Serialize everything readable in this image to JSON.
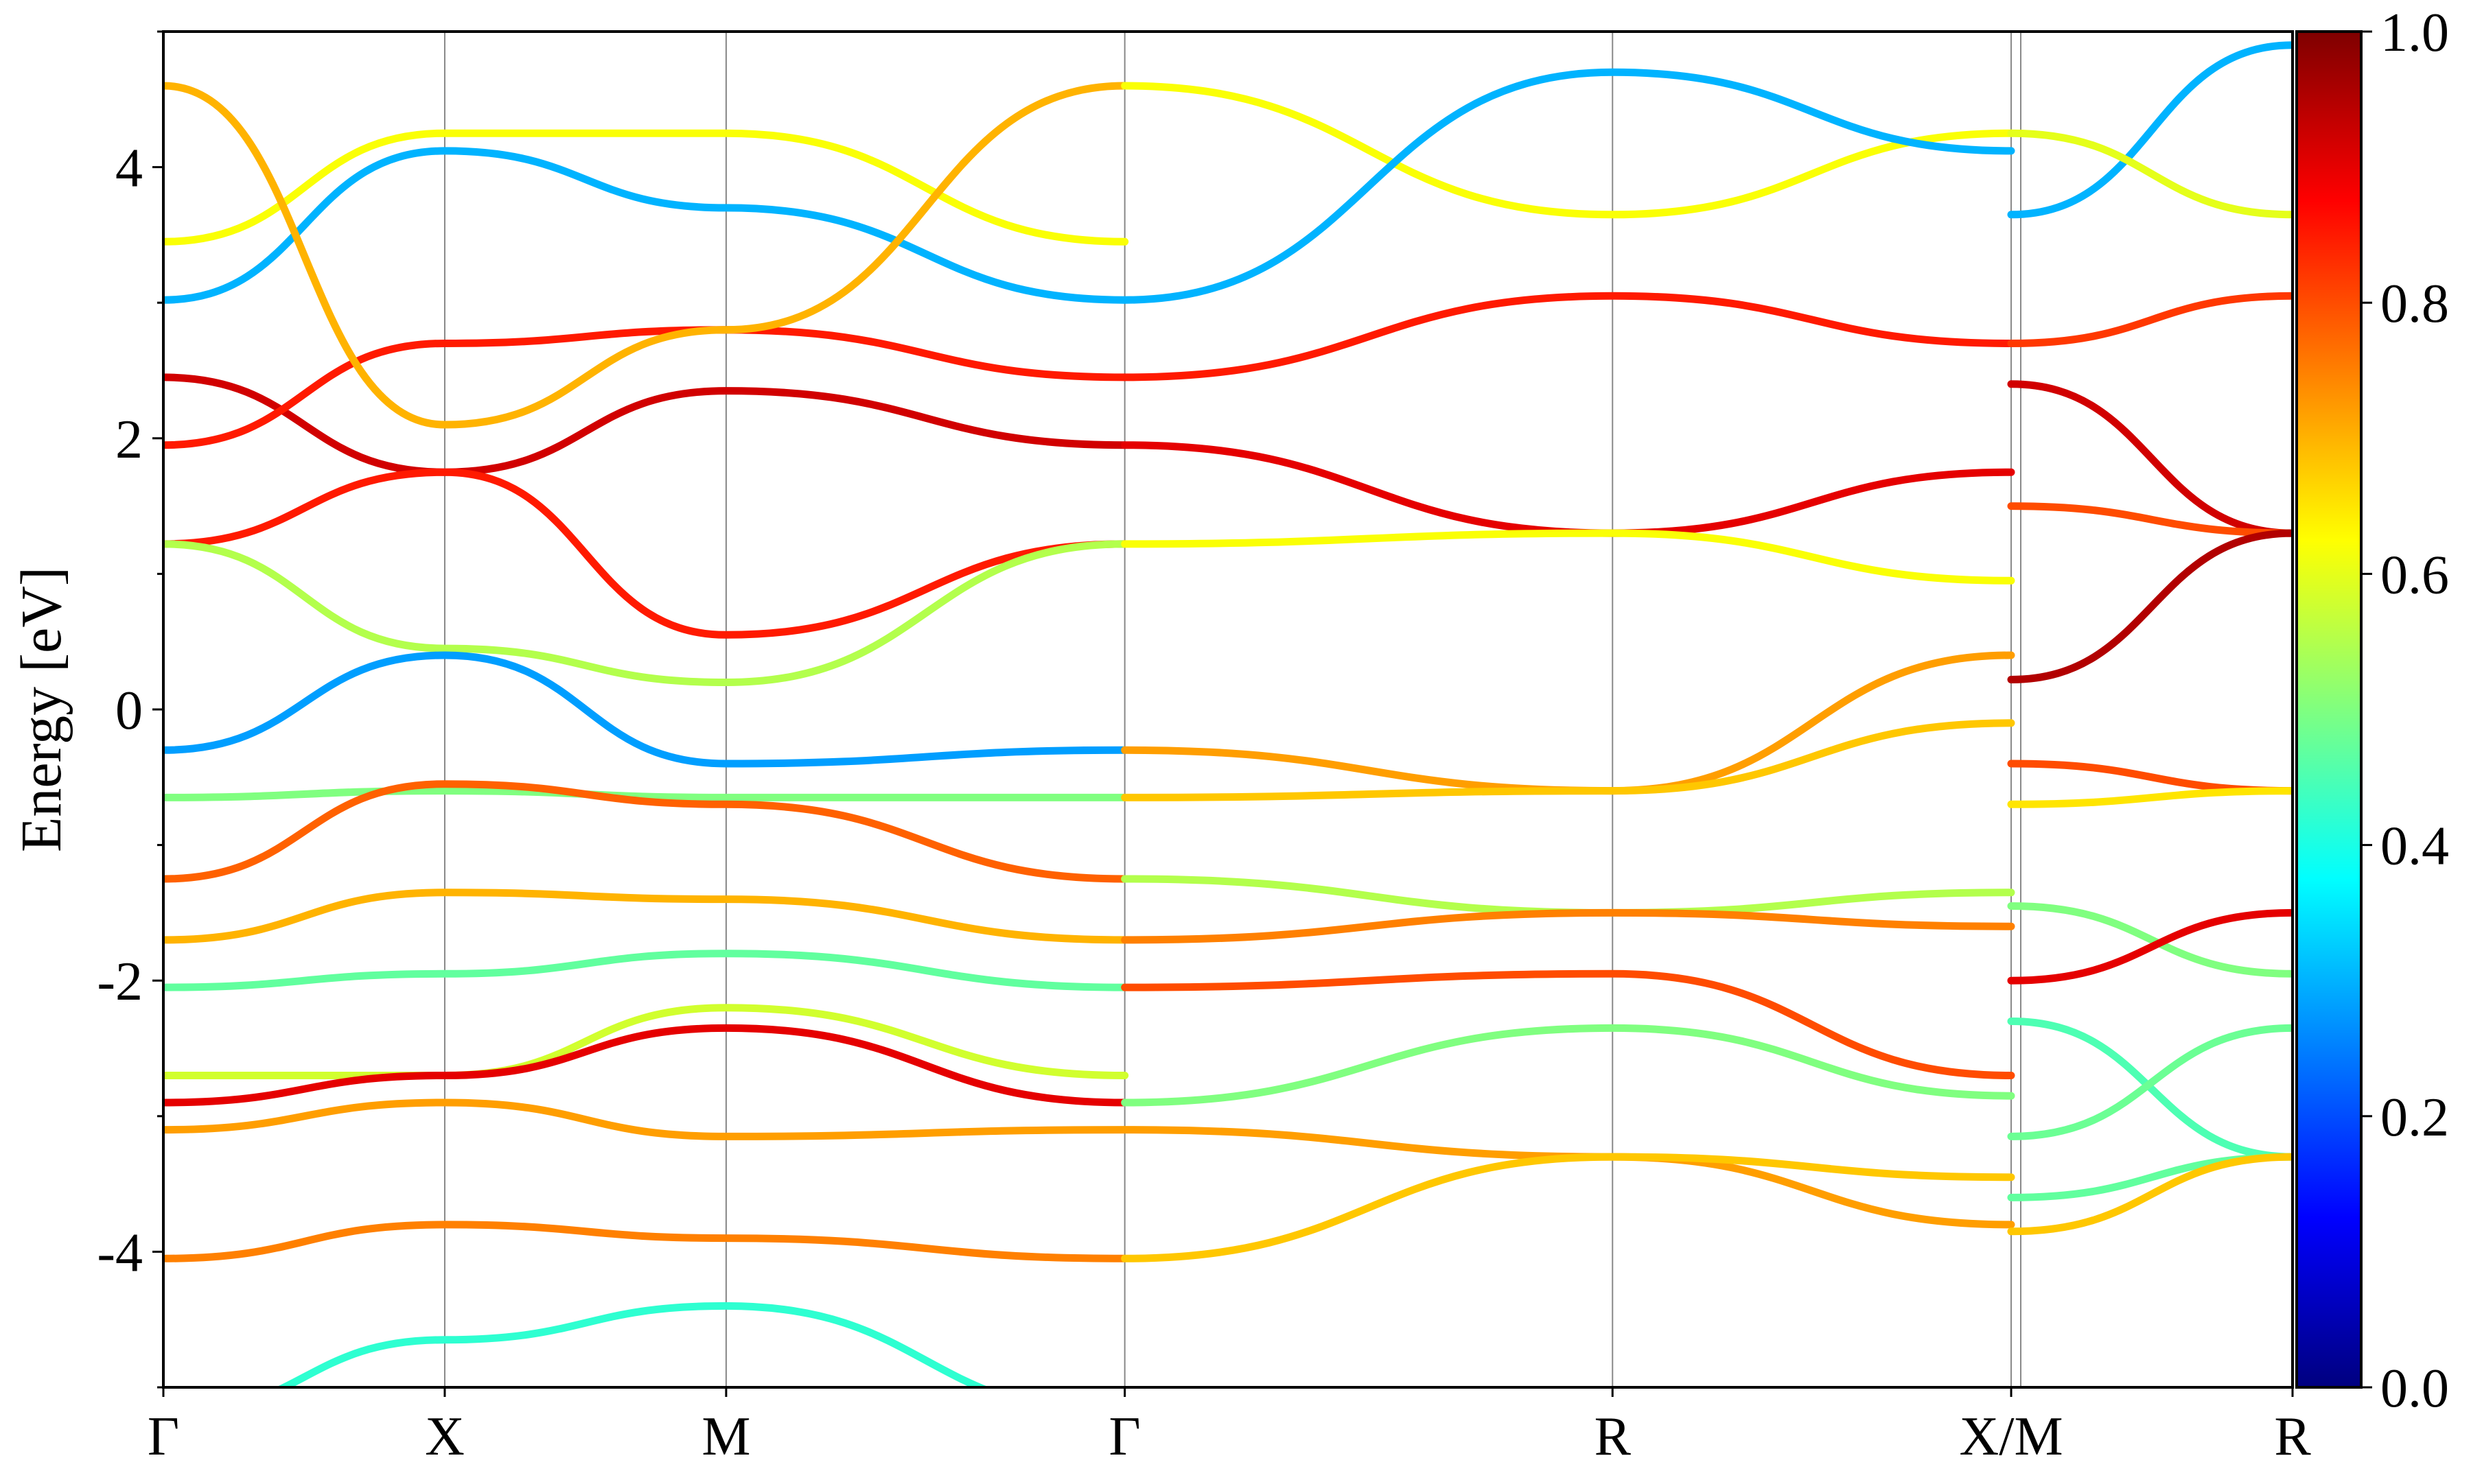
{
  "chart_data": {
    "type": "line",
    "title": "",
    "ylabel": "Energy [eV]",
    "xlabel": "",
    "ylim": [
      -5,
      5
    ],
    "grid": "vertical lines at high-symmetry points",
    "k_path": {
      "labels": [
        "Γ",
        "X",
        "M",
        "Γ",
        "R",
        "X/M",
        "R"
      ],
      "positions": [
        0,
        0.6,
        1.2,
        2.05,
        3.09,
        3.94,
        4.54
      ],
      "discontinuity": 3.94
    },
    "y_ticks": [
      -4,
      -2,
      0,
      2,
      4
    ],
    "y_tick_labels": [
      "-4",
      "-2",
      "0",
      "2",
      "4"
    ],
    "colorbar": {
      "range": [
        0.0,
        1.0
      ],
      "ticks": [
        0.0,
        0.2,
        0.4,
        0.6,
        0.8,
        1.0
      ],
      "tick_labels": [
        "0.0",
        "0.2",
        "0.4",
        "0.6",
        "0.8",
        "1.0"
      ],
      "colormap": "jet"
    },
    "series": [
      {
        "x": [
          0,
          0.6,
          1.2,
          2.05
        ],
        "y": [
          2.45,
          1.75,
          2.35,
          1.95
        ],
        "weight": 0.92
      },
      {
        "x": [
          0,
          0.6,
          1.2,
          2.05
        ],
        "y": [
          1.95,
          2.7,
          2.8,
          2.45
        ],
        "weight": 0.85
      },
      {
        "x": [
          0,
          0.6,
          1.2,
          2.05
        ],
        "y": [
          1.22,
          1.75,
          0.55,
          1.22
        ],
        "weight": 0.85
      },
      {
        "x": [
          0,
          0.6,
          1.2,
          2.05
        ],
        "y": [
          1.22,
          0.45,
          0.2,
          1.22
        ],
        "weight": 0.55
      },
      {
        "x": [
          0,
          0.6,
          1.2,
          2.05
        ],
        "y": [
          -0.3,
          0.4,
          -0.4,
          -0.3
        ],
        "weight": 0.28
      },
      {
        "x": [
          0,
          0.6,
          1.2,
          2.05
        ],
        "y": [
          -0.65,
          -0.6,
          -0.65,
          -0.65
        ],
        "weight": 0.5
      },
      {
        "x": [
          0,
          0.6,
          1.2,
          2.05
        ],
        "y": [
          -1.25,
          -0.55,
          -0.7,
          -1.25
        ],
        "weight": 0.78
      },
      {
        "x": [
          0,
          0.6,
          1.2,
          2.05
        ],
        "y": [
          -1.7,
          -1.35,
          -1.4,
          -1.7
        ],
        "weight": 0.7
      },
      {
        "x": [
          0,
          0.6,
          1.2,
          2.05
        ],
        "y": [
          -2.05,
          -1.95,
          -1.8,
          -2.05
        ],
        "weight": 0.47
      },
      {
        "x": [
          0,
          0.6,
          1.2,
          2.05
        ],
        "y": [
          -2.7,
          -2.7,
          -2.2,
          -2.7
        ],
        "weight": 0.58
      },
      {
        "x": [
          0,
          0.6,
          1.2,
          2.05
        ],
        "y": [
          -2.9,
          -2.7,
          -2.35,
          -2.9
        ],
        "weight": 0.9
      },
      {
        "x": [
          0,
          0.6,
          1.2,
          2.05
        ],
        "y": [
          -3.1,
          -2.9,
          -3.15,
          -3.1
        ],
        "weight": 0.72
      },
      {
        "x": [
          0,
          0.6,
          1.2,
          2.05
        ],
        "y": [
          -4.05,
          -3.8,
          -3.9,
          -4.05
        ],
        "weight": 0.75
      },
      {
        "x": [
          0,
          0.6,
          1.2,
          2.05
        ],
        "y": [
          -5.2,
          -4.65,
          -4.4,
          -5.2
        ],
        "weight": 0.42
      },
      {
        "x": [
          0,
          0.6,
          1.2,
          2.05
        ],
        "y": [
          3.02,
          4.12,
          3.7,
          3.02
        ],
        "weight": 0.3
      },
      {
        "x": [
          0,
          0.6,
          1.2,
          2.05
        ],
        "y": [
          3.45,
          4.25,
          4.25,
          3.45
        ],
        "weight": 0.62
      },
      {
        "x": [
          0,
          0.6,
          1.2,
          2.05
        ],
        "y": [
          4.6,
          2.1,
          2.8,
          4.6
        ],
        "weight": 0.7
      },
      {
        "x": [
          2.05,
          3.09,
          3.94
        ],
        "y": [
          2.45,
          3.05,
          2.7
        ],
        "weight": 0.85
      },
      {
        "x": [
          2.05,
          3.09,
          3.94
        ],
        "y": [
          1.95,
          1.3,
          1.75
        ],
        "weight": 0.9
      },
      {
        "x": [
          2.05,
          3.09,
          3.94
        ],
        "y": [
          1.22,
          1.3,
          0.95
        ],
        "weight": 0.62
      },
      {
        "x": [
          2.05,
          3.09,
          3.94
        ],
        "y": [
          -0.3,
          -0.6,
          0.4
        ],
        "weight": 0.72
      },
      {
        "x": [
          2.05,
          3.09,
          3.94
        ],
        "y": [
          -0.65,
          -0.6,
          -0.1
        ],
        "weight": 0.68
      },
      {
        "x": [
          2.05,
          3.09,
          3.94
        ],
        "y": [
          -1.25,
          -1.5,
          -1.35
        ],
        "weight": 0.55
      },
      {
        "x": [
          2.05,
          3.09,
          3.94
        ],
        "y": [
          -1.7,
          -1.5,
          -1.6
        ],
        "weight": 0.75
      },
      {
        "x": [
          2.05,
          3.09,
          3.94
        ],
        "y": [
          -2.05,
          -1.95,
          -2.7
        ],
        "weight": 0.8
      },
      {
        "x": [
          2.05,
          3.09,
          3.94
        ],
        "y": [
          -2.9,
          -2.35,
          -2.85
        ],
        "weight": 0.5
      },
      {
        "x": [
          2.05,
          3.09,
          3.94
        ],
        "y": [
          -3.1,
          -3.3,
          -3.8
        ],
        "weight": 0.72
      },
      {
        "x": [
          2.05,
          3.09,
          3.94
        ],
        "y": [
          -4.05,
          -3.3,
          -3.45
        ],
        "weight": 0.68
      },
      {
        "x": [
          2.05,
          3.09,
          3.94
        ],
        "y": [
          4.6,
          3.65,
          4.25
        ],
        "weight": 0.62
      },
      {
        "x": [
          2.05,
          3.09,
          3.94
        ],
        "y": [
          3.02,
          4.7,
          4.12
        ],
        "weight": 0.3
      },
      {
        "x": [
          3.94,
          4.54
        ],
        "y": [
          2.7,
          3.05
        ],
        "weight": 0.82
      },
      {
        "x": [
          3.94,
          4.54
        ],
        "y": [
          2.4,
          1.3
        ],
        "weight": 0.92
      },
      {
        "x": [
          3.94,
          4.54
        ],
        "y": [
          1.5,
          1.3
        ],
        "weight": 0.8
      },
      {
        "x": [
          3.94,
          4.54
        ],
        "y": [
          0.22,
          1.3
        ],
        "weight": 0.95
      },
      {
        "x": [
          3.94,
          4.54
        ],
        "y": [
          -0.4,
          -0.6
        ],
        "weight": 0.8
      },
      {
        "x": [
          3.94,
          4.54
        ],
        "y": [
          -0.7,
          -0.6
        ],
        "weight": 0.65
      },
      {
        "x": [
          3.94,
          4.54
        ],
        "y": [
          -1.45,
          -1.95
        ],
        "weight": 0.5
      },
      {
        "x": [
          3.94,
          4.54
        ],
        "y": [
          -2.0,
          -1.5
        ],
        "weight": 0.9
      },
      {
        "x": [
          3.94,
          4.54
        ],
        "y": [
          -2.3,
          -3.3
        ],
        "weight": 0.45
      },
      {
        "x": [
          3.94,
          4.54
        ],
        "y": [
          -3.15,
          -2.35
        ],
        "weight": 0.48
      },
      {
        "x": [
          3.94,
          4.54
        ],
        "y": [
          -3.6,
          -3.3
        ],
        "weight": 0.47
      },
      {
        "x": [
          3.94,
          4.54
        ],
        "y": [
          -3.85,
          -3.3
        ],
        "weight": 0.68
      },
      {
        "x": [
          3.94,
          4.54
        ],
        "y": [
          3.65,
          4.9
        ],
        "weight": 0.3
      },
      {
        "x": [
          3.94,
          4.54
        ],
        "y": [
          4.25,
          3.65
        ],
        "weight": 0.6
      }
    ]
  }
}
